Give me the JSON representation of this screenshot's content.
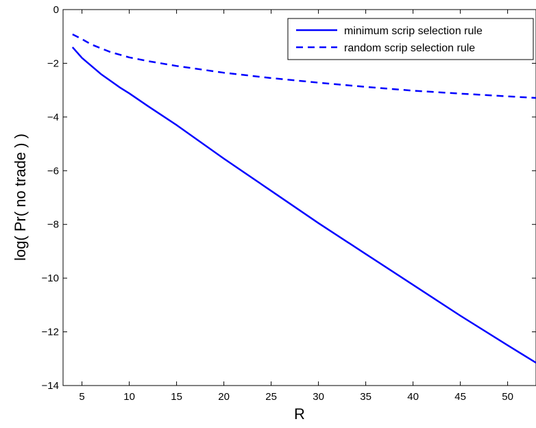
{
  "chart_data": {
    "type": "line",
    "xlabel": "R",
    "ylabel": "log( Pr( no trade ) )",
    "xlim": [
      3,
      53
    ],
    "ylim": [
      -14,
      0
    ],
    "xticks": [
      5,
      10,
      15,
      20,
      25,
      30,
      35,
      40,
      45,
      50
    ],
    "yticks": [
      0,
      -2,
      -4,
      -6,
      -8,
      -10,
      -12,
      -14
    ],
    "xtick_labels": [
      "5",
      "10",
      "15",
      "20",
      "25",
      "30",
      "35",
      "40",
      "45",
      "50"
    ],
    "ytick_labels": [
      "0",
      "−2",
      "−4",
      "−6",
      "−8",
      "−10",
      "−12",
      "−14"
    ],
    "grid": false,
    "legend_position": "top-right",
    "series": [
      {
        "name": "minimum scrip selection rule",
        "style": "solid",
        "color": "#0000ff",
        "x": [
          4,
          5,
          6,
          7,
          8,
          9,
          10,
          12,
          15,
          20,
          25,
          30,
          35,
          40,
          45,
          50,
          53
        ],
        "y": [
          -1.4,
          -1.8,
          -2.1,
          -2.4,
          -2.65,
          -2.9,
          -3.12,
          -3.6,
          -4.3,
          -5.55,
          -6.75,
          -7.95,
          -9.1,
          -10.25,
          -11.4,
          -12.5,
          -13.15
        ]
      },
      {
        "name": "random scrip selection rule",
        "style": "dashed",
        "color": "#0000ff",
        "x": [
          4,
          5,
          6,
          8,
          10,
          12,
          15,
          20,
          25,
          30,
          35,
          40,
          45,
          50,
          53
        ],
        "y": [
          -0.92,
          -1.1,
          -1.3,
          -1.58,
          -1.78,
          -1.92,
          -2.1,
          -2.35,
          -2.55,
          -2.72,
          -2.88,
          -3.02,
          -3.13,
          -3.23,
          -3.29
        ]
      }
    ]
  }
}
